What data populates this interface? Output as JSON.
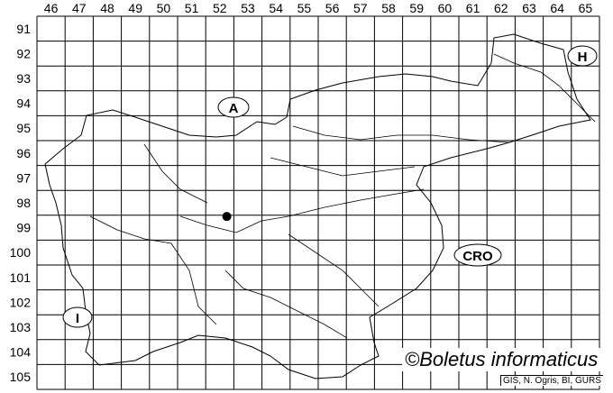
{
  "grid": {
    "columns": [
      "46",
      "47",
      "48",
      "49",
      "50",
      "51",
      "52",
      "53",
      "54",
      "55",
      "56",
      "57",
      "58",
      "59",
      "60",
      "61",
      "62",
      "63",
      "64",
      "65"
    ],
    "rows": [
      "91",
      "92",
      "93",
      "94",
      "95",
      "96",
      "97",
      "98",
      "99",
      "100",
      "101",
      "102",
      "103",
      "104",
      "105"
    ]
  },
  "country_labels": [
    {
      "id": "austria",
      "text": "A"
    },
    {
      "id": "hungary",
      "text": "H"
    },
    {
      "id": "croatia",
      "text": "CRO"
    },
    {
      "id": "italy",
      "text": "I"
    }
  ],
  "record_point": {
    "column": "52",
    "row": "99",
    "color": "#000000"
  },
  "credit": "©Boletus informaticus",
  "source": "GIS, N. Ogris, BI, GURS"
}
